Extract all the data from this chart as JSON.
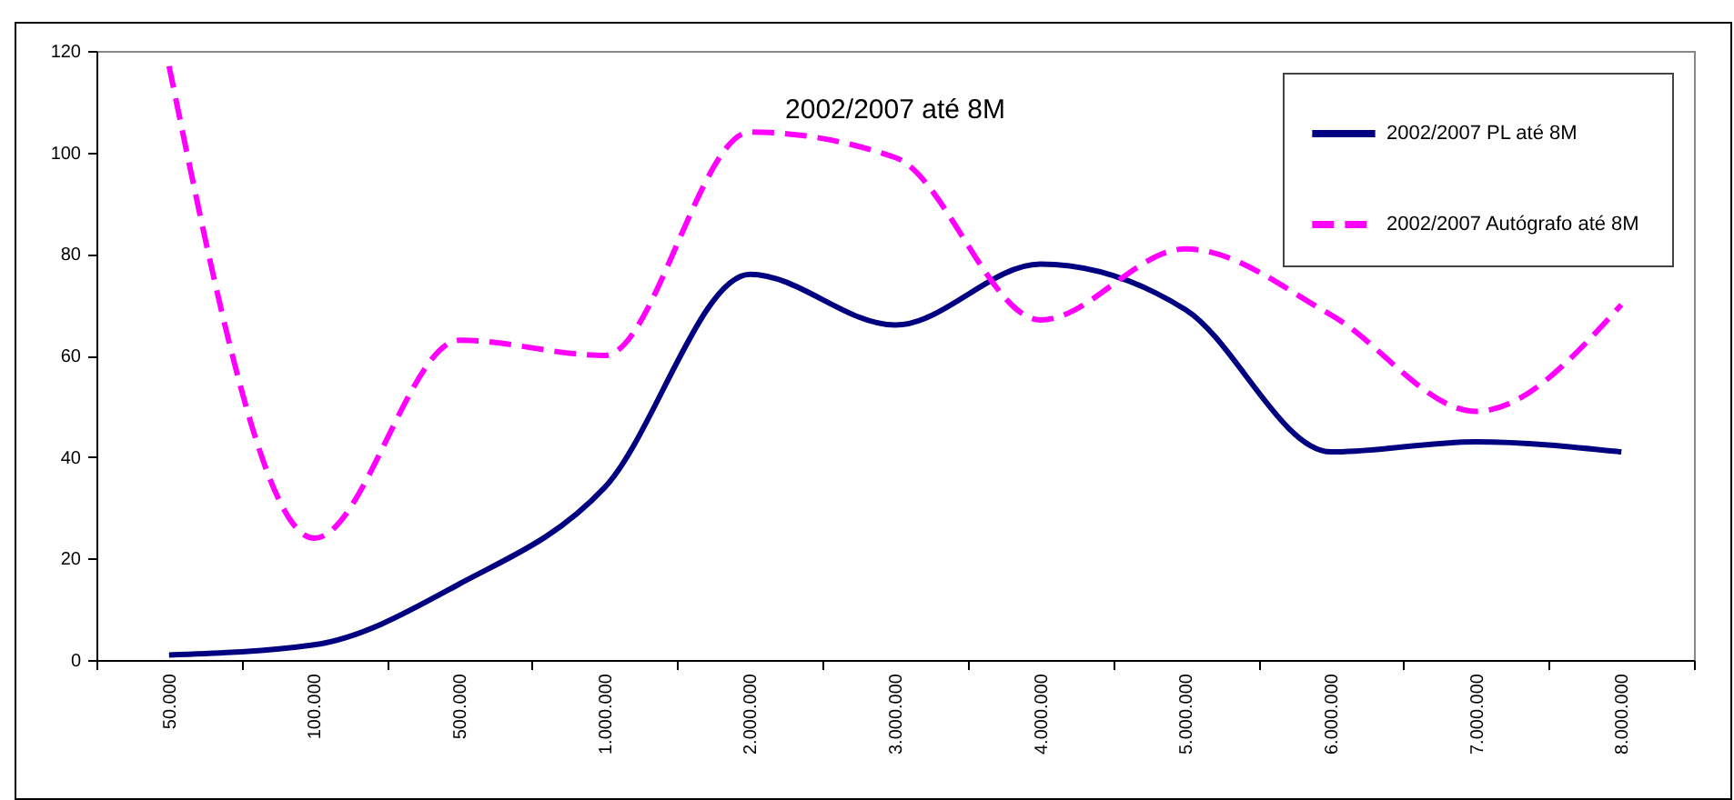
{
  "chart_data": {
    "type": "line",
    "title": "2002/2007 até 8M",
    "categories": [
      "50.000",
      "100.000",
      "500.000",
      "1.000.000",
      "2.000.000",
      "3.000.000",
      "4.000.000",
      "5.000.000",
      "6.000.000",
      "7.000.000",
      "8.000.000"
    ],
    "series": [
      {
        "name": "2002/2007  PL até 8M",
        "color": "#000080",
        "line_style": "solid",
        "values": [
          1,
          3,
          15,
          34,
          76,
          66,
          78,
          69,
          41,
          43,
          41
        ]
      },
      {
        "name": "2002/2007  Autógrafo até 8M",
        "color": "#ff00ff",
        "line_style": "dashed",
        "values": [
          117,
          24,
          63,
          60,
          104,
          99,
          67,
          81,
          68,
          49,
          70
        ]
      }
    ],
    "ylim": [
      0,
      120
    ],
    "yticks": [
      0,
      20,
      40,
      60,
      80,
      100,
      120
    ],
    "grid": false,
    "legend": "top right",
    "marker": "none"
  }
}
